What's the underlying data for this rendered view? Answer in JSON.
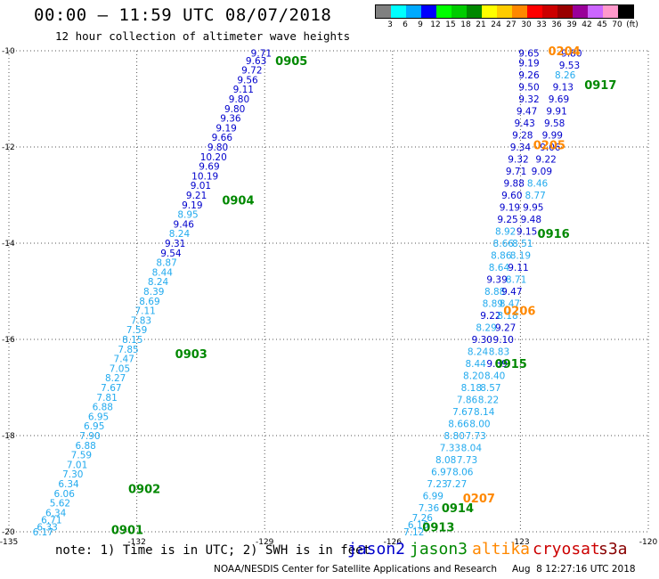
{
  "header": {
    "title": "00:00 – 11:59 UTC 08/07/2018",
    "subtitle": "12 hour collection of altimeter wave heights"
  },
  "colorbar": {
    "colors": [
      "#808080",
      "#00ffff",
      "#00aaff",
      "#0000ff",
      "#00ff00",
      "#00cc00",
      "#008800",
      "#ffff00",
      "#ffcc00",
      "#ff8800",
      "#ff0000",
      "#cc0000",
      "#990000",
      "#990099",
      "#cc66ff",
      "#ff99cc",
      "#000000"
    ],
    "labels": [
      "3",
      "6",
      "9",
      "12",
      "15",
      "18",
      "21",
      "24",
      "27",
      "30",
      "33",
      "36",
      "39",
      "42",
      "45",
      "70",
      "(ft)"
    ]
  },
  "note": "note: 1) Time is in UTC; 2) SWH is in feet",
  "satellites": [
    {
      "name": "jason2",
      "color": "#0000cc"
    },
    {
      "name": "jason3",
      "color": "#008800"
    },
    {
      "name": "altika",
      "color": "#ff8800"
    },
    {
      "name": "cryosat",
      "color": "#cc0000"
    },
    {
      "name": "s3a",
      "color": "#880000"
    }
  ],
  "footer": {
    "left": "NOAA/NESDIS Center for Satellite Applications and Research",
    "right": "Aug  8 12:27:16 UTC 2018"
  },
  "chart_data": {
    "type": "scatter",
    "xlim": [
      -135,
      -120
    ],
    "ylim": [
      -20,
      -10
    ],
    "xticks": [
      -135,
      -132,
      -129,
      -126,
      -123,
      -120
    ],
    "yticks": [
      -10,
      -12,
      -14,
      -16,
      -18,
      -20
    ],
    "grid": true,
    "time_labels": [
      {
        "text": "0905",
        "x": -128.75,
        "y": -10.2,
        "color": "#008800"
      },
      {
        "text": "0904",
        "x": -130.0,
        "y": -13.1,
        "color": "#008800"
      },
      {
        "text": "0903",
        "x": -131.1,
        "y": -16.3,
        "color": "#008800"
      },
      {
        "text": "0902",
        "x": -132.2,
        "y": -19.1,
        "color": "#008800"
      },
      {
        "text": "0901",
        "x": -132.6,
        "y": -19.95,
        "color": "#008800"
      },
      {
        "text": "0204",
        "x": -122.35,
        "y": -10.0,
        "color": "#ff8800"
      },
      {
        "text": "0917",
        "x": -121.5,
        "y": -10.7,
        "color": "#008800"
      },
      {
        "text": "0205",
        "x": -122.7,
        "y": -11.95,
        "color": "#ff8800"
      },
      {
        "text": "0916",
        "x": -122.6,
        "y": -13.8,
        "color": "#008800"
      },
      {
        "text": "0206",
        "x": -123.4,
        "y": -15.4,
        "color": "#ff8800"
      },
      {
        "text": "0915",
        "x": -123.6,
        "y": -16.5,
        "color": "#008800"
      },
      {
        "text": "0207",
        "x": -124.35,
        "y": -19.3,
        "color": "#ff8800"
      },
      {
        "text": "0914",
        "x": -124.85,
        "y": -19.5,
        "color": "#008800"
      },
      {
        "text": "0913",
        "x": -125.3,
        "y": -19.9,
        "color": "#008800"
      }
    ],
    "tracks": [
      {
        "name": "jason2-west",
        "points": [
          {
            "x": -129.08,
            "y": -10.05,
            "v": "9.71",
            "c": "#0000cc"
          },
          {
            "x": -129.2,
            "y": -10.2,
            "v": "9.63",
            "c": "#0000cc"
          },
          {
            "x": -129.3,
            "y": -10.4,
            "v": "9.72",
            "c": "#0000cc"
          },
          {
            "x": -129.4,
            "y": -10.6,
            "v": "9.56",
            "c": "#0000cc"
          },
          {
            "x": -129.5,
            "y": -10.8,
            "v": "9.11",
            "c": "#0000cc"
          },
          {
            "x": -129.6,
            "y": -11.0,
            "v": "9.80",
            "c": "#0000cc"
          },
          {
            "x": -129.7,
            "y": -11.2,
            "v": "9.80",
            "c": "#0000cc"
          },
          {
            "x": -129.8,
            "y": -11.4,
            "v": "9.36",
            "c": "#0000cc"
          },
          {
            "x": -129.9,
            "y": -11.6,
            "v": "9.19",
            "c": "#0000cc"
          },
          {
            "x": -130.0,
            "y": -11.8,
            "v": "9.66",
            "c": "#0000cc"
          },
          {
            "x": -130.1,
            "y": -12.0,
            "v": "9.80",
            "c": "#0000cc"
          },
          {
            "x": -130.2,
            "y": -12.2,
            "v": "10.20",
            "c": "#0000cc"
          },
          {
            "x": -130.3,
            "y": -12.4,
            "v": "9.69",
            "c": "#0000cc"
          },
          {
            "x": -130.4,
            "y": -12.6,
            "v": "10.19",
            "c": "#0000cc"
          },
          {
            "x": -130.5,
            "y": -12.8,
            "v": "9.01",
            "c": "#0000cc"
          },
          {
            "x": -130.6,
            "y": -13.0,
            "v": "9.21",
            "c": "#0000cc"
          },
          {
            "x": -130.7,
            "y": -13.2,
            "v": "9.19",
            "c": "#0000cc"
          },
          {
            "x": -130.8,
            "y": -13.4,
            "v": "8.95",
            "c": "#22aaee"
          },
          {
            "x": -130.9,
            "y": -13.6,
            "v": "9.46",
            "c": "#0000cc"
          },
          {
            "x": -131.0,
            "y": -13.8,
            "v": "8.24",
            "c": "#22aaee"
          },
          {
            "x": -131.1,
            "y": -14.0,
            "v": "9.31",
            "c": "#0000cc"
          },
          {
            "x": -131.2,
            "y": -14.2,
            "v": "9.54",
            "c": "#0000cc"
          },
          {
            "x": -131.3,
            "y": -14.4,
            "v": "8.87",
            "c": "#22aaee"
          },
          {
            "x": -131.4,
            "y": -14.6,
            "v": "8.44",
            "c": "#22aaee"
          },
          {
            "x": -131.5,
            "y": -14.8,
            "v": "8.24",
            "c": "#22aaee"
          },
          {
            "x": -131.6,
            "y": -15.0,
            "v": "8.39",
            "c": "#22aaee"
          },
          {
            "x": -131.7,
            "y": -15.2,
            "v": "8.69",
            "c": "#22aaee"
          },
          {
            "x": -131.8,
            "y": -15.4,
            "v": "7.11",
            "c": "#22aaee"
          },
          {
            "x": -131.9,
            "y": -15.6,
            "v": "7.83",
            "c": "#22aaee"
          },
          {
            "x": -132.0,
            "y": -15.8,
            "v": "7.59",
            "c": "#22aaee"
          },
          {
            "x": -132.1,
            "y": -16.0,
            "v": "8.15",
            "c": "#22aaee"
          },
          {
            "x": -132.2,
            "y": -16.2,
            "v": "7.85",
            "c": "#22aaee"
          },
          {
            "x": -132.3,
            "y": -16.4,
            "v": "7.47",
            "c": "#22aaee"
          },
          {
            "x": -132.4,
            "y": -16.6,
            "v": "7.05",
            "c": "#22aaee"
          },
          {
            "x": -132.5,
            "y": -16.8,
            "v": "8.27",
            "c": "#22aaee"
          },
          {
            "x": -132.6,
            "y": -17.0,
            "v": "7.67",
            "c": "#22aaee"
          },
          {
            "x": -132.7,
            "y": -17.2,
            "v": "7.81",
            "c": "#22aaee"
          },
          {
            "x": -132.8,
            "y": -17.4,
            "v": "6.88",
            "c": "#22aaee"
          },
          {
            "x": -132.9,
            "y": -17.6,
            "v": "6.95",
            "c": "#22aaee"
          },
          {
            "x": -133.0,
            "y": -17.8,
            "v": "6.95",
            "c": "#22aaee"
          },
          {
            "x": -133.1,
            "y": -18.0,
            "v": "7.90",
            "c": "#22aaee"
          },
          {
            "x": -133.2,
            "y": -18.2,
            "v": "6.88",
            "c": "#22aaee"
          },
          {
            "x": -133.3,
            "y": -18.4,
            "v": "7.59",
            "c": "#22aaee"
          },
          {
            "x": -133.4,
            "y": -18.6,
            "v": "7.01",
            "c": "#22aaee"
          },
          {
            "x": -133.5,
            "y": -18.8,
            "v": "7.30",
            "c": "#22aaee"
          },
          {
            "x": -133.6,
            "y": -19.0,
            "v": "6.34",
            "c": "#22aaee"
          },
          {
            "x": -133.7,
            "y": -19.2,
            "v": "6.06",
            "c": "#22aaee"
          },
          {
            "x": -133.8,
            "y": -19.4,
            "v": "5.62",
            "c": "#22aaee"
          },
          {
            "x": -133.9,
            "y": -19.6,
            "v": "6.34",
            "c": "#22aaee"
          },
          {
            "x": -134.0,
            "y": -19.75,
            "v": "6.71",
            "c": "#22aaee"
          },
          {
            "x": -134.1,
            "y": -19.9,
            "v": "6.33",
            "c": "#22aaee"
          },
          {
            "x": -134.2,
            "y": -20.0,
            "v": "6.17",
            "c": "#22aaee"
          }
        ]
      },
      {
        "name": "jason2-east",
        "points": [
          {
            "x": -122.8,
            "y": -10.05,
            "v": "9.65",
            "c": "#0000cc"
          },
          {
            "x": -122.8,
            "y": -10.25,
            "v": "9.19",
            "c": "#0000cc"
          },
          {
            "x": -122.8,
            "y": -10.5,
            "v": "9.26",
            "c": "#0000cc"
          },
          {
            "x": -122.8,
            "y": -10.75,
            "v": "9.50",
            "c": "#0000cc"
          },
          {
            "x": -122.8,
            "y": -11.0,
            "v": "9.32",
            "c": "#0000cc"
          },
          {
            "x": -122.85,
            "y": -11.25,
            "v": "9.47",
            "c": "#0000cc"
          },
          {
            "x": -122.9,
            "y": -11.5,
            "v": "9.43",
            "c": "#0000cc"
          },
          {
            "x": -122.95,
            "y": -11.75,
            "v": "9.28",
            "c": "#0000cc"
          },
          {
            "x": -123.0,
            "y": -12.0,
            "v": "9.34",
            "c": "#0000cc"
          },
          {
            "x": -123.05,
            "y": -12.25,
            "v": "9.32",
            "c": "#0000cc"
          },
          {
            "x": -123.1,
            "y": -12.5,
            "v": "9.71",
            "c": "#0000cc"
          },
          {
            "x": -123.15,
            "y": -12.75,
            "v": "9.88",
            "c": "#0000cc"
          },
          {
            "x": -123.2,
            "y": -13.0,
            "v": "9.60",
            "c": "#0000cc"
          },
          {
            "x": -123.25,
            "y": -13.25,
            "v": "9.19",
            "c": "#0000cc"
          },
          {
            "x": -123.3,
            "y": -13.5,
            "v": "9.25",
            "c": "#0000cc"
          },
          {
            "x": -123.35,
            "y": -13.75,
            "v": "8.92",
            "c": "#22aaee"
          },
          {
            "x": -123.4,
            "y": -14.0,
            "v": "8.66",
            "c": "#22aaee"
          },
          {
            "x": -123.45,
            "y": -14.25,
            "v": "8.86",
            "c": "#22aaee"
          },
          {
            "x": -123.5,
            "y": -14.5,
            "v": "8.64",
            "c": "#22aaee"
          },
          {
            "x": -123.55,
            "y": -14.75,
            "v": "9.39",
            "c": "#0000cc"
          },
          {
            "x": -123.6,
            "y": -15.0,
            "v": "8.88",
            "c": "#22aaee"
          },
          {
            "x": -123.65,
            "y": -15.25,
            "v": "8.89",
            "c": "#22aaee"
          },
          {
            "x": -123.7,
            "y": -15.5,
            "v": "9.22",
            "c": "#0000cc"
          },
          {
            "x": -123.8,
            "y": -15.75,
            "v": "8.29",
            "c": "#22aaee"
          },
          {
            "x": -123.9,
            "y": -16.0,
            "v": "9.30",
            "c": "#0000cc"
          },
          {
            "x": -124.0,
            "y": -16.25,
            "v": "8.24",
            "c": "#22aaee"
          },
          {
            "x": -124.05,
            "y": -16.5,
            "v": "8.44",
            "c": "#22aaee"
          },
          {
            "x": -124.1,
            "y": -16.75,
            "v": "8.20",
            "c": "#22aaee"
          },
          {
            "x": -124.15,
            "y": -17.0,
            "v": "8.18",
            "c": "#22aaee"
          },
          {
            "x": -124.25,
            "y": -17.25,
            "v": "7.86",
            "c": "#22aaee"
          },
          {
            "x": -124.35,
            "y": -17.5,
            "v": "7.67",
            "c": "#22aaee"
          },
          {
            "x": -124.45,
            "y": -17.75,
            "v": "8.66",
            "c": "#22aaee"
          },
          {
            "x": -124.55,
            "y": -18.0,
            "v": "8.80",
            "c": "#22aaee"
          },
          {
            "x": -124.65,
            "y": -18.25,
            "v": "7.33",
            "c": "#22aaee"
          },
          {
            "x": -124.75,
            "y": -18.5,
            "v": "8.08",
            "c": "#22aaee"
          },
          {
            "x": -124.85,
            "y": -18.75,
            "v": "6.97",
            "c": "#22aaee"
          },
          {
            "x": -124.95,
            "y": -19.0,
            "v": "7.23",
            "c": "#22aaee"
          },
          {
            "x": -125.05,
            "y": -19.25,
            "v": "6.99",
            "c": "#22aaee"
          },
          {
            "x": -125.15,
            "y": -19.5,
            "v": "7.36",
            "c": "#22aaee"
          },
          {
            "x": -125.3,
            "y": -19.7,
            "v": "7.26",
            "c": "#22aaee"
          },
          {
            "x": -125.4,
            "y": -19.85,
            "v": "6.16",
            "c": "#22aaee"
          },
          {
            "x": -125.5,
            "y": -20.0,
            "v": "7.12",
            "c": "#22aaee"
          }
        ]
      },
      {
        "name": "jason3",
        "points": [
          {
            "x": -121.8,
            "y": -10.05,
            "v": "9.80",
            "c": "#0000cc"
          },
          {
            "x": -121.85,
            "y": -10.3,
            "v": "9.53",
            "c": "#0000cc"
          },
          {
            "x": -121.95,
            "y": -10.5,
            "v": "8.26",
            "c": "#22aaee"
          },
          {
            "x": -122.0,
            "y": -10.75,
            "v": "9.13",
            "c": "#0000cc"
          },
          {
            "x": -122.1,
            "y": -11.0,
            "v": "9.69",
            "c": "#0000cc"
          },
          {
            "x": -122.15,
            "y": -11.25,
            "v": "9.91",
            "c": "#0000cc"
          },
          {
            "x": -122.2,
            "y": -11.5,
            "v": "9.58",
            "c": "#0000cc"
          },
          {
            "x": -122.25,
            "y": -11.75,
            "v": "9.99",
            "c": "#0000cc"
          },
          {
            "x": -122.3,
            "y": -12.0,
            "v": "9.06",
            "c": "#0000cc"
          },
          {
            "x": -122.4,
            "y": -12.25,
            "v": "9.22",
            "c": "#0000cc"
          },
          {
            "x": -122.5,
            "y": -12.5,
            "v": "9.09",
            "c": "#0000cc"
          },
          {
            "x": -122.6,
            "y": -12.75,
            "v": "8.46",
            "c": "#22aaee"
          },
          {
            "x": -122.65,
            "y": -13.0,
            "v": "8.77",
            "c": "#22aaee"
          },
          {
            "x": -122.7,
            "y": -13.25,
            "v": "9.95",
            "c": "#0000cc"
          },
          {
            "x": -122.75,
            "y": -13.5,
            "v": "9.48",
            "c": "#0000cc"
          },
          {
            "x": -122.85,
            "y": -13.75,
            "v": "9.15",
            "c": "#0000cc"
          },
          {
            "x": -122.95,
            "y": -14.0,
            "v": "8.51",
            "c": "#22aaee"
          },
          {
            "x": -123.0,
            "y": -14.25,
            "v": "8.19",
            "c": "#22aaee"
          },
          {
            "x": -123.05,
            "y": -14.5,
            "v": "9.11",
            "c": "#0000cc"
          },
          {
            "x": -123.1,
            "y": -14.75,
            "v": "8.71",
            "c": "#22aaee"
          },
          {
            "x": -123.2,
            "y": -15.0,
            "v": "9.47",
            "c": "#0000cc"
          },
          {
            "x": -123.25,
            "y": -15.25,
            "v": "8.47",
            "c": "#22aaee"
          },
          {
            "x": -123.3,
            "y": -15.5,
            "v": "8.18",
            "c": "#22aaee"
          },
          {
            "x": -123.35,
            "y": -15.75,
            "v": "9.27",
            "c": "#0000cc"
          },
          {
            "x": -123.4,
            "y": -16.0,
            "v": "9.10",
            "c": "#0000cc"
          },
          {
            "x": -123.5,
            "y": -16.25,
            "v": "8.83",
            "c": "#22aaee"
          },
          {
            "x": -123.55,
            "y": -16.5,
            "v": "9.39",
            "c": "#0000cc"
          },
          {
            "x": -123.6,
            "y": -16.75,
            "v": "8.40",
            "c": "#22aaee"
          },
          {
            "x": -123.7,
            "y": -17.0,
            "v": "8.57",
            "c": "#22aaee"
          },
          {
            "x": -123.75,
            "y": -17.25,
            "v": "8.22",
            "c": "#22aaee"
          },
          {
            "x": -123.85,
            "y": -17.5,
            "v": "8.14",
            "c": "#22aaee"
          },
          {
            "x": -123.95,
            "y": -17.75,
            "v": "8.00",
            "c": "#22aaee"
          },
          {
            "x": -124.05,
            "y": -18.0,
            "v": "7.73",
            "c": "#22aaee"
          },
          {
            "x": -124.15,
            "y": -18.25,
            "v": "8.04",
            "c": "#22aaee"
          },
          {
            "x": -124.25,
            "y": -18.5,
            "v": "7.73",
            "c": "#22aaee"
          },
          {
            "x": -124.35,
            "y": -18.75,
            "v": "8.06",
            "c": "#22aaee"
          },
          {
            "x": -124.5,
            "y": -19.0,
            "v": "7.27",
            "c": "#22aaee"
          }
        ]
      }
    ]
  }
}
